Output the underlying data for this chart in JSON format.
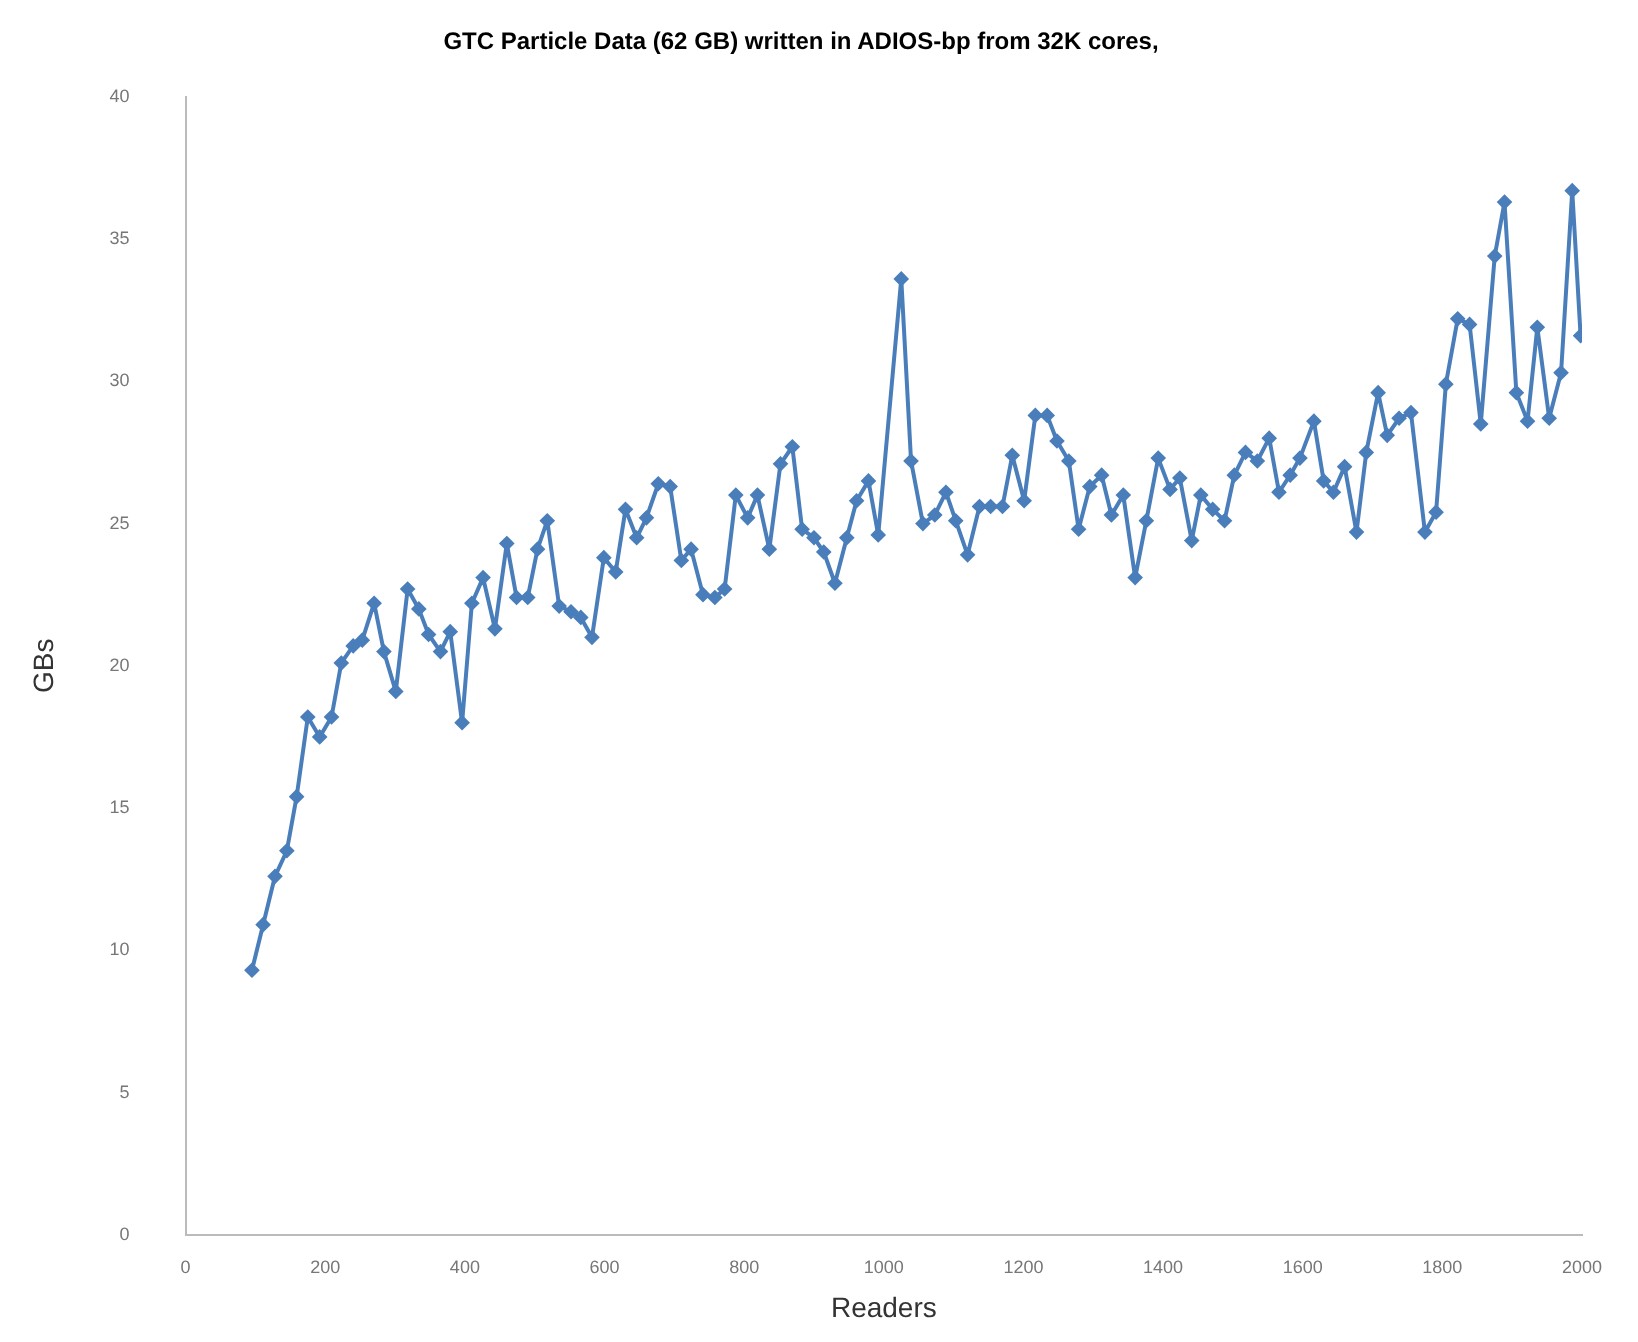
{
  "chart_data": {
    "type": "line",
    "title": "GTC Particle Data (62 GB) written in ADIOS-bp from 32K cores,",
    "xlabel": "Readers",
    "ylabel": "GBs",
    "x": [
      95,
      111,
      128,
      145,
      159,
      175,
      192,
      209,
      223,
      240,
      253,
      270,
      284,
      301,
      318,
      334,
      348,
      365,
      379,
      396,
      410,
      426,
      443,
      460,
      474,
      490,
      504,
      518,
      535,
      552,
      566,
      582,
      599,
      616,
      630,
      646,
      660,
      677,
      694,
      710,
      724,
      741,
      758,
      772,
      788,
      805,
      819,
      836,
      852,
      869,
      883,
      900,
      914,
      930,
      947,
      961,
      978,
      992,
      1025,
      1039,
      1056,
      1073,
      1089,
      1103,
      1120,
      1137,
      1153,
      1170,
      1184,
      1201,
      1217,
      1234,
      1248,
      1265,
      1279,
      1295,
      1312,
      1326,
      1343,
      1360,
      1376,
      1393,
      1410,
      1424,
      1441,
      1454,
      1471,
      1488,
      1502,
      1518,
      1535,
      1552,
      1566,
      1582,
      1596,
      1616,
      1630,
      1644,
      1660,
      1677,
      1691,
      1708,
      1721,
      1738,
      1755,
      1775,
      1791,
      1805,
      1822,
      1839,
      1855,
      1875,
      1889,
      1906,
      1922,
      1936,
      1953,
      1970,
      1986,
      1998
    ],
    "series": [
      {
        "color": "#4a7ebb",
        "values": [
          9.3,
          10.9,
          12.6,
          13.5,
          15.4,
          18.2,
          17.5,
          18.2,
          20.1,
          20.7,
          20.9,
          22.2,
          20.5,
          19.1,
          22.7,
          22.0,
          21.1,
          20.5,
          21.2,
          18.0,
          22.2,
          23.1,
          21.3,
          24.3,
          22.4,
          22.4,
          24.1,
          25.1,
          22.1,
          21.9,
          21.7,
          21.0,
          23.8,
          23.3,
          25.5,
          24.5,
          25.2,
          26.4,
          26.3,
          23.7,
          24.1,
          22.5,
          22.4,
          22.7,
          26.0,
          25.2,
          26.0,
          24.1,
          27.1,
          27.7,
          24.8,
          24.5,
          24.0,
          22.9,
          24.5,
          25.8,
          26.5,
          24.6,
          33.6,
          27.2,
          25.0,
          25.3,
          26.1,
          25.1,
          23.9,
          25.6,
          25.6,
          25.6,
          27.4,
          25.8,
          28.8,
          28.8,
          27.9,
          27.2,
          24.8,
          26.3,
          26.7,
          25.3,
          26.0,
          23.1,
          25.1,
          27.3,
          26.2,
          26.6,
          24.4,
          26.0,
          25.5,
          25.1,
          26.7,
          27.5,
          27.2,
          28.0,
          26.1,
          26.7,
          27.3,
          28.6,
          26.5,
          26.1,
          27.0,
          24.7,
          27.5,
          29.6,
          28.1,
          28.7,
          28.9,
          24.7,
          25.4,
          29.9,
          32.2,
          32.0,
          28.5,
          34.4,
          36.3,
          29.6,
          28.6,
          31.9,
          28.7,
          30.3,
          36.7,
          31.6
        ]
      }
    ],
    "xlim": [
      0,
      2000
    ],
    "xticks": [
      0,
      200,
      400,
      600,
      800,
      1000,
      1200,
      1400,
      1600,
      1800,
      2000
    ],
    "ylim": [
      0,
      40
    ],
    "yticks": [
      0,
      5,
      10,
      15,
      20,
      25,
      30,
      35,
      40
    ],
    "grid": false,
    "legend": false,
    "marker": "diamond",
    "line_style": "solid"
  }
}
